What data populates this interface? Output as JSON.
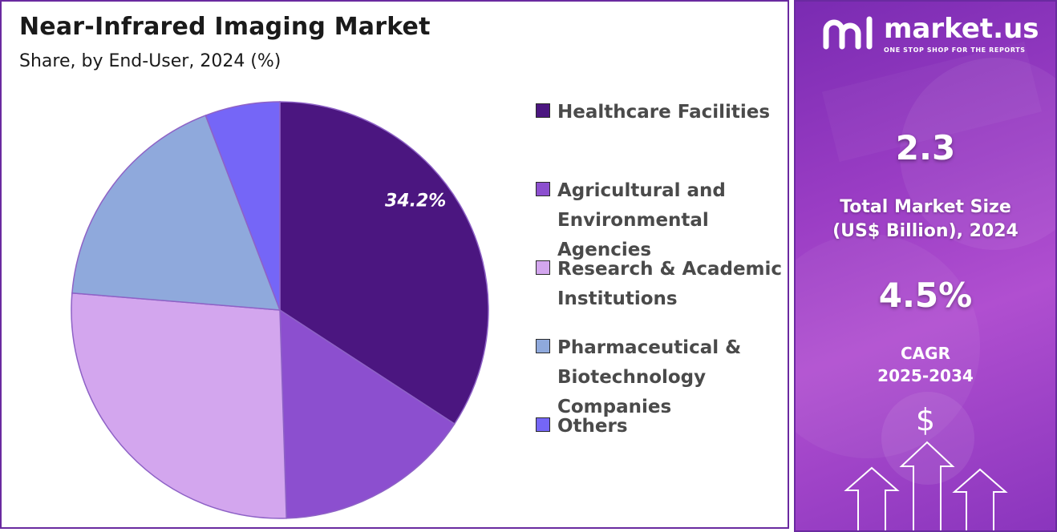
{
  "header": {
    "title": "Near-Infrared Imaging Market",
    "subtitle": "Share, by End-User, 2024 (%)"
  },
  "chart_data": {
    "type": "pie",
    "title": "Near-Infrared Imaging Market",
    "subtitle": "Share, by End-User, 2024 (%)",
    "categories": [
      "Healthcare Facilities",
      "Agricultural and Environmental Agencies",
      "Research & Academic Institutions",
      "Pharmaceutical & Biotechnology Companies",
      "Others"
    ],
    "values": [
      34.2,
      15.3,
      26.8,
      17.9,
      5.8
    ],
    "colors": [
      "#4b1680",
      "#8c4fcf",
      "#d3a6ee",
      "#8fa9dc",
      "#7566f7"
    ],
    "data_labels": [
      "34.2%",
      "",
      "",
      "",
      ""
    ],
    "legend_position": "right"
  },
  "legend": {
    "items": [
      {
        "label": "Healthcare Facilities",
        "color": "#4b1680"
      },
      {
        "label": "Agricultural and Environmental Agencies",
        "color": "#8c4fcf"
      },
      {
        "label": "Research & Academic Institutions",
        "color": "#d3a6ee"
      },
      {
        "label": "Pharmaceutical & Biotechnology Companies",
        "color": "#8fa9dc"
      },
      {
        "label": "Others",
        "color": "#7566f7"
      }
    ]
  },
  "sidebar": {
    "brand_name": "market.us",
    "brand_tagline": "ONE STOP SHOP FOR THE REPORTS",
    "market_size_value": "2.3",
    "market_size_label_line1": "Total Market Size",
    "market_size_label_line2": "(US$ Billion), 2024",
    "cagr_value": "4.5%",
    "cagr_label": "CAGR",
    "cagr_period": "2025-2034",
    "dollar_symbol": "$",
    "background_color": "#9a3dc4"
  }
}
